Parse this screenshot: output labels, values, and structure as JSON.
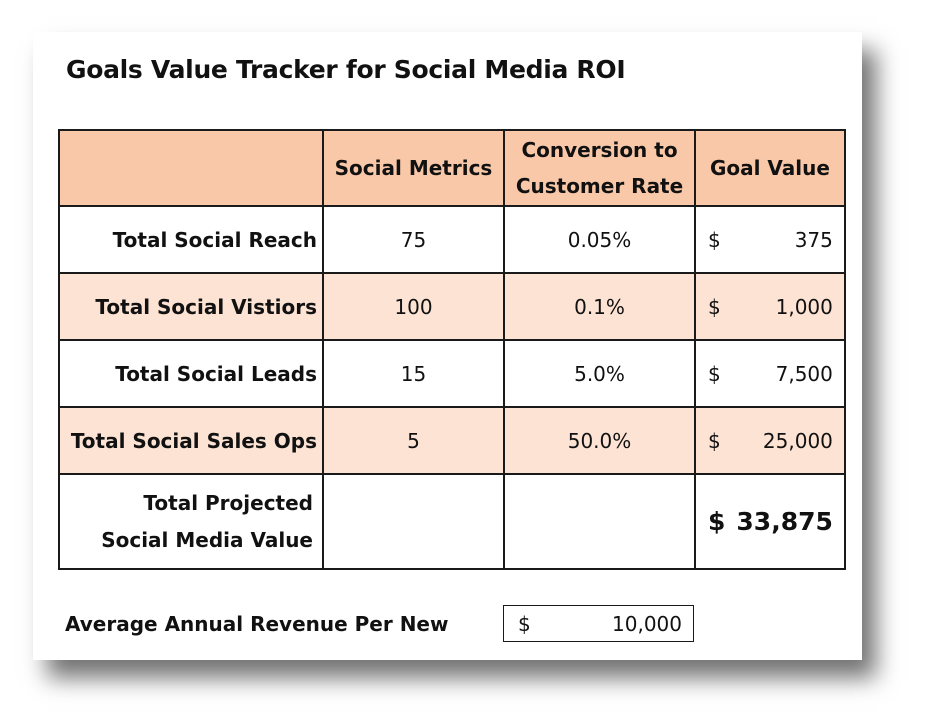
{
  "title": "Goals Value Tracker for Social Media ROI",
  "table": {
    "headers": {
      "label": "",
      "metrics": "Social Metrics",
      "rate_line1": "Conversion to",
      "rate_line2": "Customer Rate",
      "goal": "Goal Value"
    },
    "rows": [
      {
        "label": "Total Social Reach",
        "metric": "75",
        "rate": "0.05%",
        "currency": "$",
        "goal": "375"
      },
      {
        "label": "Total Social Vistiors",
        "metric": "100",
        "rate": "0.1%",
        "currency": "$",
        "goal": "1,000"
      },
      {
        "label": "Total Social Leads",
        "metric": "15",
        "rate": "5.0%",
        "currency": "$",
        "goal": "7,500"
      },
      {
        "label": "Total Social Sales Ops",
        "metric": "5",
        "rate": "50.0%",
        "currency": "$",
        "goal": "25,000"
      }
    ],
    "total": {
      "label_line1": "Total Projected",
      "label_line2": "Social Media Value",
      "metric": "",
      "rate": "",
      "currency": "$",
      "goal": "33,875"
    }
  },
  "revenue": {
    "label": "Average Annual Revenue Per New",
    "currency": "$",
    "value": "10,000"
  },
  "colors": {
    "header_fill": "#f9c8a9",
    "shaded_row_fill": "#fde3d4",
    "border": "#1a1a1a"
  }
}
